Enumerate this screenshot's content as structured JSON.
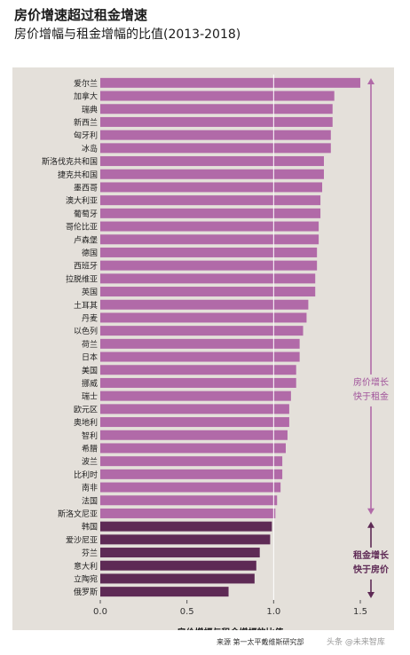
{
  "header": {
    "title": "房价增速超过租金增速",
    "subtitle": "房价增幅与租金增幅的比值(2013-2018)"
  },
  "footer": {
    "source": "来源  第一太平戴维斯研究部",
    "watermark": "头条 @未来智库"
  },
  "annotations": {
    "upper_line1": "房价增长",
    "upper_line2": "快于租金",
    "lower_line1": "租金增长",
    "lower_line2": "快于房价"
  },
  "colors": {
    "upper": "#b16aa8",
    "lower": "#5e2a55",
    "upper_text": "#a0529a",
    "lower_text": "#5e2a55",
    "background": "#e4e0da"
  },
  "chart_data": {
    "type": "bar",
    "orientation": "horizontal",
    "title": "房价增速超过租金增速",
    "subtitle": "房价增幅与租金增幅的比值(2013-2018)",
    "xlabel": "房价增幅与租金增幅的比值",
    "ylabel": "",
    "xlim": [
      0,
      1.5
    ],
    "xticks": [
      0.0,
      0.5,
      1.0,
      1.5
    ],
    "xtick_labels": [
      "0.0",
      "0.5",
      "1.0",
      "1.5"
    ],
    "reference_line": 1.0,
    "grid": false,
    "categories": [
      "爱尔兰",
      "加拿大",
      "瑞典",
      "新西兰",
      "匈牙利",
      "冰岛",
      "斯洛伐克共和国",
      "捷克共和国",
      "墨西哥",
      "澳大利亚",
      "葡萄牙",
      "哥伦比亚",
      "卢森堡",
      "德国",
      "西班牙",
      "拉脱维亚",
      "英国",
      "土耳其",
      "丹麦",
      "以色列",
      "荷兰",
      "日本",
      "美国",
      "挪威",
      "瑞士",
      "欧元区",
      "奥地利",
      "智利",
      "希腊",
      "波兰",
      "比利时",
      "南非",
      "法国",
      "斯洛文尼亚",
      "韩国",
      "爱沙尼亚",
      "芬兰",
      "意大利",
      "立陶宛",
      "俄罗斯"
    ],
    "values": [
      1.5,
      1.35,
      1.34,
      1.34,
      1.33,
      1.33,
      1.29,
      1.29,
      1.28,
      1.27,
      1.27,
      1.26,
      1.26,
      1.25,
      1.25,
      1.24,
      1.24,
      1.2,
      1.19,
      1.17,
      1.15,
      1.15,
      1.13,
      1.13,
      1.1,
      1.09,
      1.09,
      1.08,
      1.07,
      1.05,
      1.05,
      1.04,
      1.02,
      1.01,
      0.99,
      0.98,
      0.92,
      0.9,
      0.89,
      0.74
    ]
  }
}
